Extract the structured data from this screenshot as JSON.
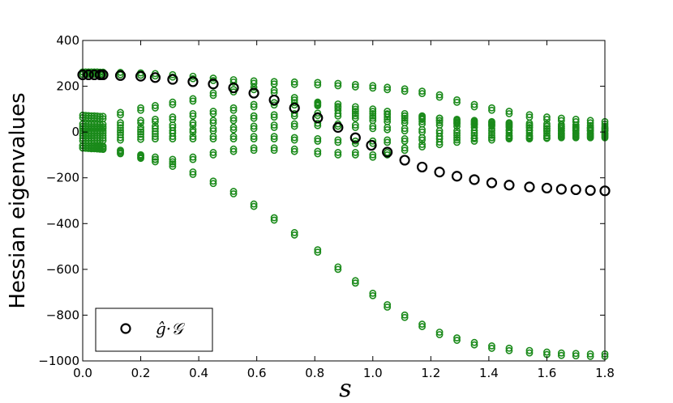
{
  "chart_data": {
    "type": "scatter",
    "title": "",
    "xlabel": "s",
    "ylabel": "Hessian eigenvalues",
    "xlim": [
      0.0,
      1.8
    ],
    "ylim": [
      -1000,
      400
    ],
    "xticks": [
      "0.0",
      "0.2",
      "0.4",
      "0.6",
      "0.8",
      "1.0",
      "1.2",
      "1.4",
      "1.6",
      "1.8"
    ],
    "yticks": [
      "400",
      "200",
      "0",
      "−200",
      "−400",
      "−600",
      "−800",
      "−1000"
    ],
    "grid": false,
    "legend": {
      "position": "bottom-left",
      "entries": [
        "ĝ·𝒢"
      ]
    },
    "colors": {
      "series_green": "#1a8a1a",
      "highlight": "#000000"
    },
    "x": [
      0.0,
      0.01,
      0.02,
      0.03,
      0.04,
      0.05,
      0.06,
      0.07,
      0.13,
      0.2,
      0.25,
      0.31,
      0.38,
      0.45,
      0.52,
      0.59,
      0.66,
      0.73,
      0.81,
      0.88,
      0.94,
      1.0,
      1.05,
      1.11,
      1.17,
      1.23,
      1.29,
      1.35,
      1.41,
      1.47,
      1.54,
      1.6,
      1.65,
      1.7,
      1.75,
      1.8
    ],
    "series": [
      {
        "values": [
          252,
          252,
          252,
          252,
          252,
          252,
          251,
          251,
          250,
          248,
          245,
          240,
          233,
          225,
          218,
          213,
          210,
          208,
          206,
          202,
          197,
          192,
          185,
          178,
          168,
          152,
          130,
          110,
          95,
          80,
          65,
          55,
          50,
          45,
          40,
          35
        ]
      },
      {
        "values": [
          63,
          62,
          61,
          60,
          60,
          59,
          58,
          58,
          75,
          95,
          105,
          120,
          135,
          160,
          175,
          185,
          172,
          140,
          115,
          95,
          80,
          70,
          65,
          60,
          55,
          50,
          45,
          40,
          35,
          30,
          28,
          25,
          22,
          20,
          18,
          15
        ]
      },
      {
        "values": [
          25,
          25,
          24,
          24,
          24,
          24,
          23,
          23,
          30,
          40,
          45,
          55,
          70,
          80,
          95,
          110,
          118,
          118,
          120,
          112,
          100,
          90,
          80,
          70,
          60,
          50,
          40,
          35,
          30,
          25,
          20,
          15,
          15,
          12,
          10,
          8
        ]
      },
      {
        "values": [
          5,
          5,
          5,
          5,
          5,
          5,
          5,
          5,
          8,
          10,
          15,
          20,
          30,
          40,
          50,
          60,
          65,
          70,
          72,
          70,
          60,
          50,
          45,
          40,
          35,
          30,
          25,
          20,
          15,
          10,
          8,
          5,
          5,
          5,
          5,
          5
        ]
      },
      {
        "values": [
          -15,
          -15,
          -15,
          -15,
          -15,
          -15,
          -15,
          -15,
          -12,
          -10,
          -8,
          -5,
          0,
          5,
          10,
          15,
          20,
          25,
          28,
          25,
          20,
          15,
          10,
          5,
          0,
          -5,
          -5,
          -5,
          -5,
          -5,
          -5,
          -5,
          -5,
          -5,
          -5,
          -5
        ]
      },
      {
        "values": [
          -38,
          -38,
          -38,
          -38,
          -37,
          -37,
          -37,
          -37,
          -35,
          -32,
          -30,
          -30,
          -30,
          -30,
          -30,
          -30,
          -30,
          -35,
          -40,
          -45,
          -50,
          -50,
          -45,
          -40,
          -35,
          -30,
          -25,
          -25,
          -25,
          -25,
          -25,
          -25,
          -20,
          -20,
          -20,
          -20
        ]
      },
      {
        "values": [
          -70,
          -70,
          -70,
          -70,
          -70,
          -70,
          -71,
          -72,
          -90,
          -110,
          -120,
          -130,
          -120,
          -100,
          -85,
          -80,
          -80,
          -85,
          -95,
          -100,
          -100,
          -110,
          -100,
          -80,
          -65,
          -55,
          -45,
          -40,
          -35,
          -30,
          -30,
          -28,
          -25,
          -25,
          -25,
          -25
        ]
      },
      {
        "values": [
          -70,
          -71,
          -72,
          -73,
          -73,
          -74,
          -75,
          -76,
          -95,
          -115,
          -130,
          -150,
          -185,
          -225,
          -270,
          -325,
          -385,
          -450,
          -525,
          -600,
          -660,
          -715,
          -765,
          -810,
          -850,
          -885,
          -910,
          -930,
          -945,
          -955,
          -965,
          -972,
          -976,
          -978,
          -980,
          -980
        ]
      }
    ],
    "highlight": {
      "label": "ĝ·𝒢",
      "x": [
        0.0,
        0.02,
        0.04,
        0.06,
        0.07,
        0.13,
        0.2,
        0.25,
        0.31,
        0.38,
        0.45,
        0.52,
        0.59,
        0.66,
        0.73,
        0.81,
        0.88,
        0.94,
        0.995,
        1.05,
        1.11,
        1.17,
        1.23,
        1.29,
        1.35,
        1.41,
        1.47,
        1.54,
        1.6,
        1.65,
        1.7,
        1.75,
        1.8
      ],
      "values": [
        250,
        250,
        250,
        250,
        250,
        247,
        244,
        238,
        230,
        220,
        210,
        193,
        170,
        140,
        105,
        62,
        20,
        -25,
        -58,
        -88,
        -123,
        -153,
        -175,
        -193,
        -208,
        -222,
        -232,
        -240,
        -245,
        -250,
        -252,
        -255,
        -257
      ]
    }
  }
}
